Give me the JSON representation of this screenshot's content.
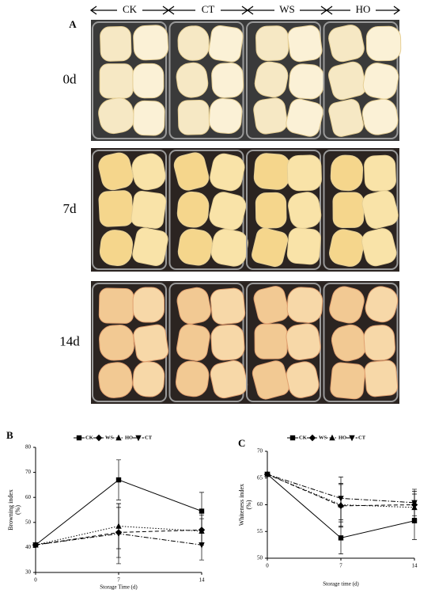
{
  "photo_panel": {
    "label": "A",
    "columns": [
      "CK",
      "CT",
      "WS",
      "HO"
    ],
    "rows": [
      "0d",
      "7d",
      "14d"
    ]
  },
  "chart_data": [
    {
      "type": "line",
      "panel_label": "B",
      "xlabel": "Storage Time (d)",
      "ylabel": [
        "Browning index",
        "(%)"
      ],
      "x": [
        0,
        7,
        14
      ],
      "xlim": [
        0,
        14
      ],
      "xticks": [
        0,
        7,
        14
      ],
      "ylim": [
        30,
        80
      ],
      "yticks": [
        30,
        40,
        50,
        60,
        70,
        80
      ],
      "series": [
        {
          "name": "CK",
          "color": "#000000",
          "style": "solid",
          "marker": "square",
          "values": [
            41,
            67,
            54.5
          ],
          "errors": [
            0,
            8,
            7.5
          ]
        },
        {
          "name": "WS",
          "color": "#000000",
          "style": "dashed",
          "marker": "diamond",
          "values": [
            41,
            46,
            47
          ],
          "errors": [
            0,
            10,
            6
          ]
        },
        {
          "name": "HO",
          "color": "#000000",
          "style": "dotted",
          "marker": "triangle-up",
          "values": [
            41,
            48.5,
            46.5
          ],
          "errors": [
            0,
            9,
            5
          ]
        },
        {
          "name": "CT",
          "color": "#000000",
          "style": "dashdot",
          "marker": "triangle-down",
          "values": [
            41,
            45.5,
            41
          ],
          "errors": [
            0,
            12,
            6
          ]
        }
      ]
    },
    {
      "type": "line",
      "panel_label": "C",
      "xlabel": "Storage time (d)",
      "ylabel": [
        "Whiteness index",
        "(%)"
      ],
      "x": [
        0,
        7,
        14
      ],
      "xlim": [
        0,
        14
      ],
      "xticks": [
        0,
        7,
        14
      ],
      "ylim": [
        50,
        70
      ],
      "yticks": [
        50,
        55,
        60,
        65,
        70
      ],
      "series": [
        {
          "name": "CK",
          "color": "#000000",
          "style": "solid",
          "marker": "square",
          "values": [
            65.7,
            53.8,
            57
          ],
          "errors": [
            0,
            3,
            3.5
          ]
        },
        {
          "name": "WS",
          "color": "#000000",
          "style": "dashed",
          "marker": "diamond",
          "values": [
            65.7,
            59.8,
            60
          ],
          "errors": [
            0,
            4,
            2.5
          ]
        },
        {
          "name": "HO",
          "color": "#000000",
          "style": "dotted",
          "marker": "triangle-up",
          "values": [
            65.7,
            60,
            59.5
          ],
          "errors": [
            0,
            4,
            2.5
          ]
        },
        {
          "name": "CT",
          "color": "#000000",
          "style": "dashdot",
          "marker": "triangle-down",
          "values": [
            65.7,
            61.2,
            60.4
          ],
          "errors": [
            0,
            4,
            2.5
          ]
        }
      ]
    }
  ]
}
